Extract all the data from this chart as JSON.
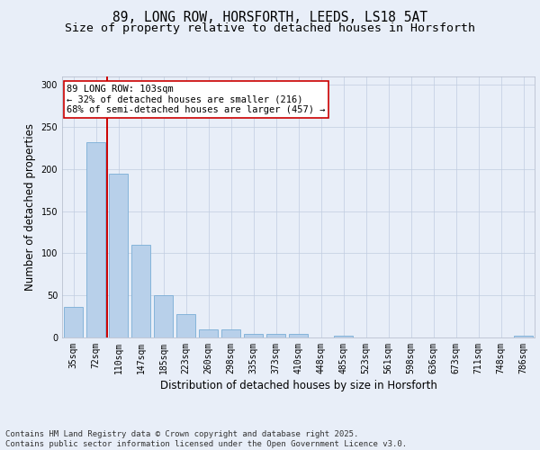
{
  "title": "89, LONG ROW, HORSFORTH, LEEDS, LS18 5AT",
  "subtitle": "Size of property relative to detached houses in Horsforth",
  "xlabel": "Distribution of detached houses by size in Horsforth",
  "ylabel": "Number of detached properties",
  "categories": [
    "35sqm",
    "72sqm",
    "110sqm",
    "147sqm",
    "185sqm",
    "223sqm",
    "260sqm",
    "298sqm",
    "335sqm",
    "373sqm",
    "410sqm",
    "448sqm",
    "485sqm",
    "523sqm",
    "561sqm",
    "598sqm",
    "636sqm",
    "673sqm",
    "711sqm",
    "748sqm",
    "786sqm"
  ],
  "values": [
    36,
    232,
    195,
    110,
    50,
    28,
    10,
    10,
    4,
    4,
    4,
    0,
    2,
    0,
    0,
    0,
    0,
    0,
    0,
    0,
    2
  ],
  "bar_color": "#b8d0ea",
  "bar_edge_color": "#7aaed6",
  "vline_x": 1.5,
  "vline_color": "#cc0000",
  "annotation_text": "89 LONG ROW: 103sqm\n← 32% of detached houses are smaller (216)\n68% of semi-detached houses are larger (457) →",
  "annotation_box_facecolor": "#ffffff",
  "annotation_box_edgecolor": "#cc0000",
  "ylim": [
    0,
    310
  ],
  "yticks": [
    0,
    50,
    100,
    150,
    200,
    250,
    300
  ],
  "footer_text": "Contains HM Land Registry data © Crown copyright and database right 2025.\nContains public sector information licensed under the Open Government Licence v3.0.",
  "bg_color": "#e8eef8",
  "title_fontsize": 10.5,
  "subtitle_fontsize": 9.5,
  "axis_label_fontsize": 8.5,
  "tick_fontsize": 7,
  "annotation_fontsize": 7.5,
  "footer_fontsize": 6.5
}
